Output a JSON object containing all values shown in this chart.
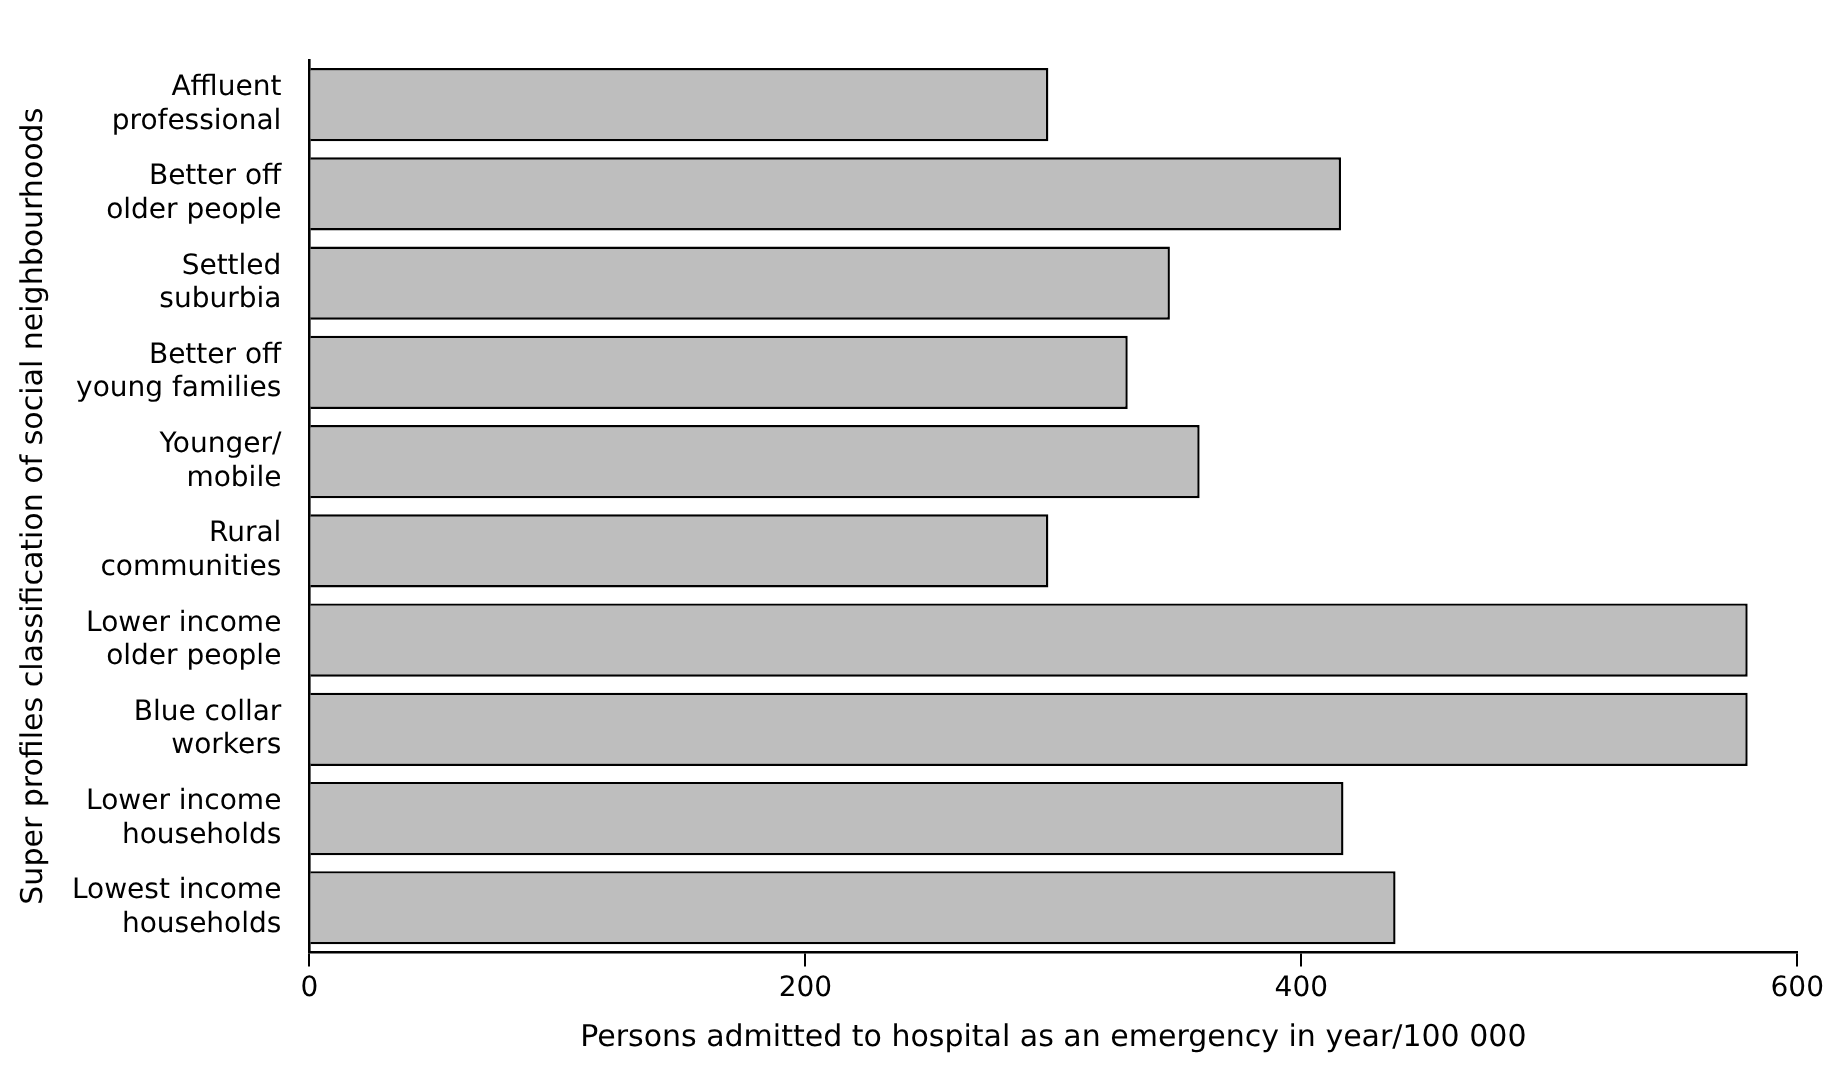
{
  "chart_data": {
    "type": "bar",
    "orientation": "horizontal",
    "xlabel": "Persons admitted to hospital as an emergency in year/100 000",
    "ylabel": "Super profiles classification of social neighbourhoods",
    "categories": [
      "Affluent professional",
      "Better off older people",
      "Settled suburbia",
      "Better off young families",
      "Younger/ mobile",
      "Rural communities",
      "Lower income older people",
      "Blue collar workers",
      "Lower income households",
      "Lowest income households"
    ],
    "values": [
      298,
      416,
      347,
      330,
      359,
      298,
      580,
      580,
      417,
      438
    ],
    "color": "#bebebe",
    "xlim": [
      0,
      600
    ],
    "xticks": [
      0,
      200,
      400,
      600
    ],
    "grid": false,
    "legend": false
  }
}
